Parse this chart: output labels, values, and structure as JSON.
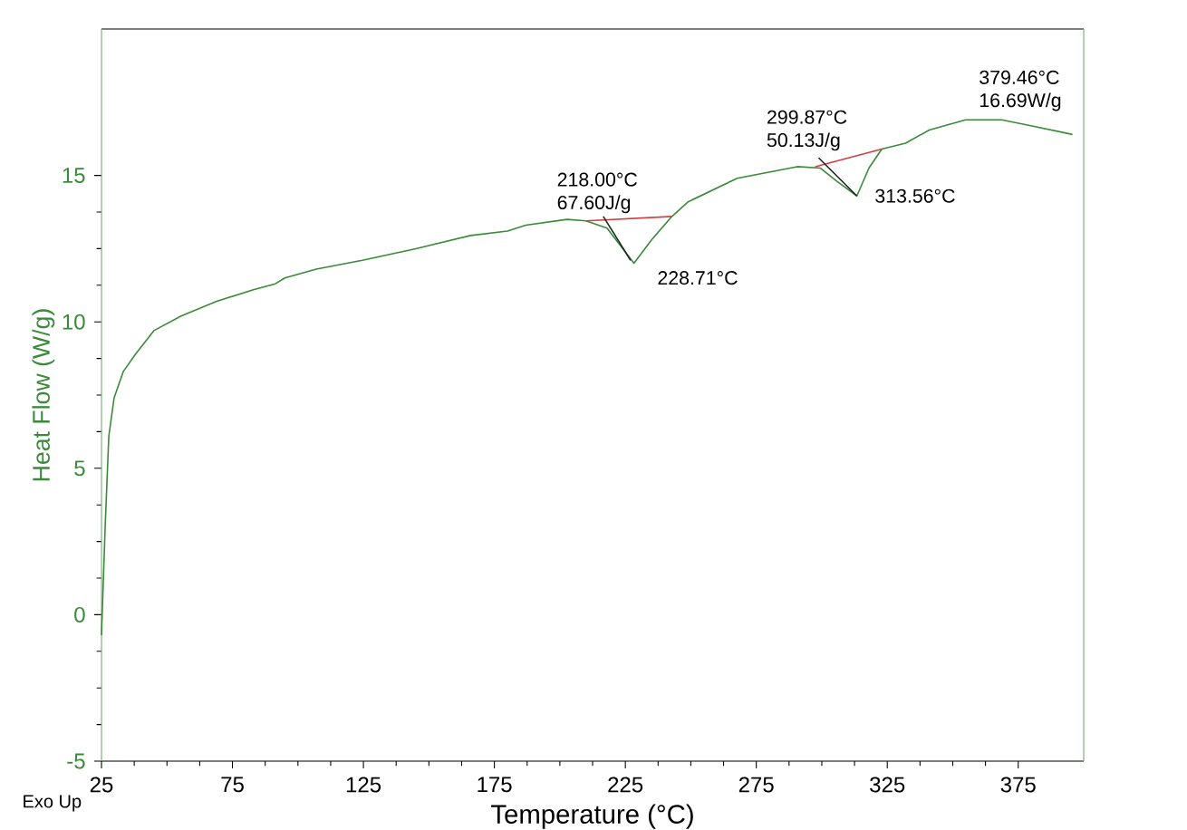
{
  "chart_data": {
    "type": "line",
    "xlabel": "Temperature (°C)",
    "ylabel": "Heat Flow (W/g)",
    "xlim": [
      25,
      400
    ],
    "xticks": [
      25,
      75,
      125,
      175,
      225,
      275,
      325,
      375
    ],
    "ylim": [
      -5,
      20
    ],
    "yticks": [
      -5,
      0,
      5,
      10,
      15
    ],
    "series": [
      {
        "color": "#3a8a3a",
        "x": [
          25,
          26.4,
          27.8,
          29.8,
          33.3,
          38,
          45,
          55.4,
          69,
          83,
          91.4,
          95,
          107,
          124.6,
          145,
          166,
          180,
          187,
          202.7,
          210,
          218,
          228.3,
          235,
          242.8,
          249,
          267.7,
          290.6,
          299.5,
          305.8,
          313.4,
          318,
          322.9,
          332,
          341,
          354.9,
          368.7,
          379.8,
          395.7
        ],
        "values": [
          -0.7,
          3.0,
          6.1,
          7.4,
          8.3,
          8.9,
          9.7,
          10.2,
          10.7,
          11.1,
          11.3,
          11.5,
          11.8,
          12.1,
          12.5,
          12.95,
          13.1,
          13.3,
          13.5,
          13.45,
          13.2,
          12.0,
          12.8,
          13.6,
          14.1,
          14.9,
          15.3,
          15.25,
          14.8,
          14.3,
          15.25,
          15.9,
          16.1,
          16.55,
          16.9,
          16.9,
          16.7,
          16.4
        ]
      },
      {
        "color": "#d04040",
        "x": [
          210,
          242.8
        ],
        "values": [
          13.45,
          13.6
        ]
      },
      {
        "color": "#d04040",
        "x": [
          297.5,
          322.9
        ],
        "values": [
          15.3,
          15.9
        ]
      },
      {
        "color": "#222222",
        "x": [
          216.6,
          227
        ],
        "values": [
          13.6,
          12.1
        ]
      },
      {
        "color": "#222222",
        "x": [
          298.8,
          313.4
        ],
        "values": [
          15.6,
          14.3
        ]
      }
    ],
    "annotations": [
      {
        "text": "218.00°C",
        "x": 218,
        "y": 13.2
      },
      {
        "text": "67.60J/g",
        "x": 218,
        "y": 13.2
      },
      {
        "text": "228.71°C",
        "x": 228.71,
        "y": 12.0
      },
      {
        "text": "299.87°C",
        "x": 299.87,
        "y": 15.25
      },
      {
        "text": "50.13J/g",
        "x": 299.87,
        "y": 15.25
      },
      {
        "text": "313.56°C",
        "x": 313.56,
        "y": 14.3
      },
      {
        "text": "379.46°C",
        "x": 379.46,
        "y": 16.69
      },
      {
        "text": "16.69W/g",
        "x": 379.46,
        "y": 16.69
      },
      "Exo Up"
    ],
    "grid": false,
    "legend": false,
    "marker": "none",
    "line_style": "solid"
  }
}
